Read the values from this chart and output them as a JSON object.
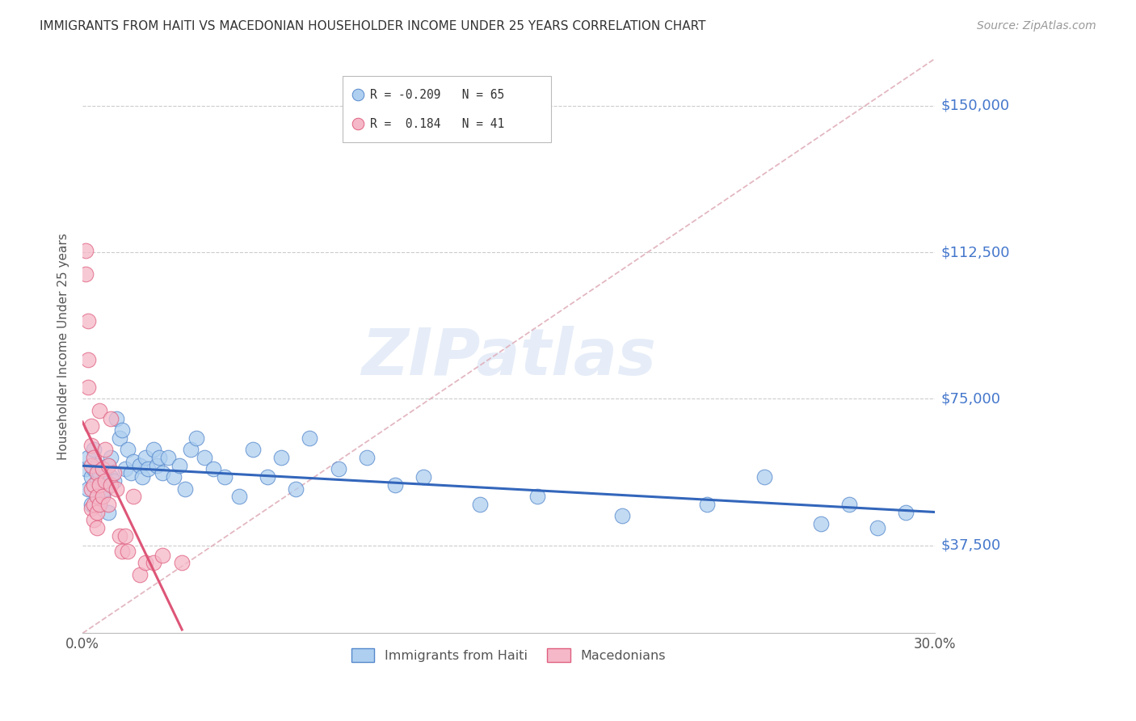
{
  "title": "IMMIGRANTS FROM HAITI VS MACEDONIAN HOUSEHOLDER INCOME UNDER 25 YEARS CORRELATION CHART",
  "source": "Source: ZipAtlas.com",
  "ylabel": "Householder Income Under 25 years",
  "watermark": "ZIPatlas",
  "ytick_labels": [
    "$150,000",
    "$112,500",
    "$75,000",
    "$37,500"
  ],
  "ytick_values": [
    150000,
    112500,
    75000,
    37500
  ],
  "ylim": [
    15000,
    162000
  ],
  "xlim": [
    0.0,
    0.3
  ],
  "haiti_color": "#aecff0",
  "haiti_edge_color": "#5588cc",
  "mac_color": "#f5b8c8",
  "mac_edge_color": "#e06080",
  "haiti_line_color": "#3366bb",
  "mac_line_color": "#dd5577",
  "dashed_line_color": "#e0b0bb",
  "haiti_x": [
    0.001,
    0.002,
    0.002,
    0.003,
    0.003,
    0.004,
    0.004,
    0.005,
    0.005,
    0.005,
    0.006,
    0.006,
    0.006,
    0.007,
    0.007,
    0.008,
    0.008,
    0.009,
    0.009,
    0.01,
    0.01,
    0.011,
    0.012,
    0.013,
    0.014,
    0.015,
    0.016,
    0.017,
    0.018,
    0.02,
    0.021,
    0.022,
    0.023,
    0.025,
    0.026,
    0.027,
    0.028,
    0.03,
    0.032,
    0.034,
    0.036,
    0.038,
    0.04,
    0.043,
    0.046,
    0.05,
    0.055,
    0.06,
    0.065,
    0.07,
    0.075,
    0.08,
    0.09,
    0.1,
    0.11,
    0.12,
    0.14,
    0.16,
    0.19,
    0.22,
    0.24,
    0.26,
    0.27,
    0.28,
    0.29
  ],
  "haiti_y": [
    57000,
    52000,
    60000,
    55000,
    48000,
    57000,
    62000,
    54000,
    50000,
    58000,
    53000,
    48000,
    56000,
    57000,
    50000,
    55000,
    52000,
    58000,
    46000,
    55000,
    60000,
    54000,
    70000,
    65000,
    67000,
    57000,
    62000,
    56000,
    59000,
    58000,
    55000,
    60000,
    57000,
    62000,
    58000,
    60000,
    56000,
    60000,
    55000,
    58000,
    52000,
    62000,
    65000,
    60000,
    57000,
    55000,
    50000,
    62000,
    55000,
    60000,
    52000,
    65000,
    57000,
    60000,
    53000,
    55000,
    48000,
    50000,
    45000,
    48000,
    55000,
    43000,
    48000,
    42000,
    46000
  ],
  "mac_x": [
    0.001,
    0.001,
    0.002,
    0.002,
    0.002,
    0.003,
    0.003,
    0.003,
    0.003,
    0.003,
    0.004,
    0.004,
    0.004,
    0.004,
    0.005,
    0.005,
    0.005,
    0.005,
    0.006,
    0.006,
    0.006,
    0.007,
    0.007,
    0.008,
    0.008,
    0.009,
    0.009,
    0.01,
    0.01,
    0.011,
    0.012,
    0.013,
    0.014,
    0.015,
    0.016,
    0.018,
    0.02,
    0.022,
    0.025,
    0.028,
    0.035
  ],
  "mac_y": [
    113000,
    107000,
    95000,
    85000,
    78000,
    68000,
    63000,
    58000,
    52000,
    47000,
    53000,
    60000,
    48000,
    44000,
    56000,
    50000,
    46000,
    42000,
    53000,
    48000,
    72000,
    57000,
    50000,
    62000,
    54000,
    58000,
    48000,
    70000,
    53000,
    56000,
    52000,
    40000,
    36000,
    40000,
    36000,
    50000,
    30000,
    33000,
    33000,
    35000,
    33000
  ]
}
